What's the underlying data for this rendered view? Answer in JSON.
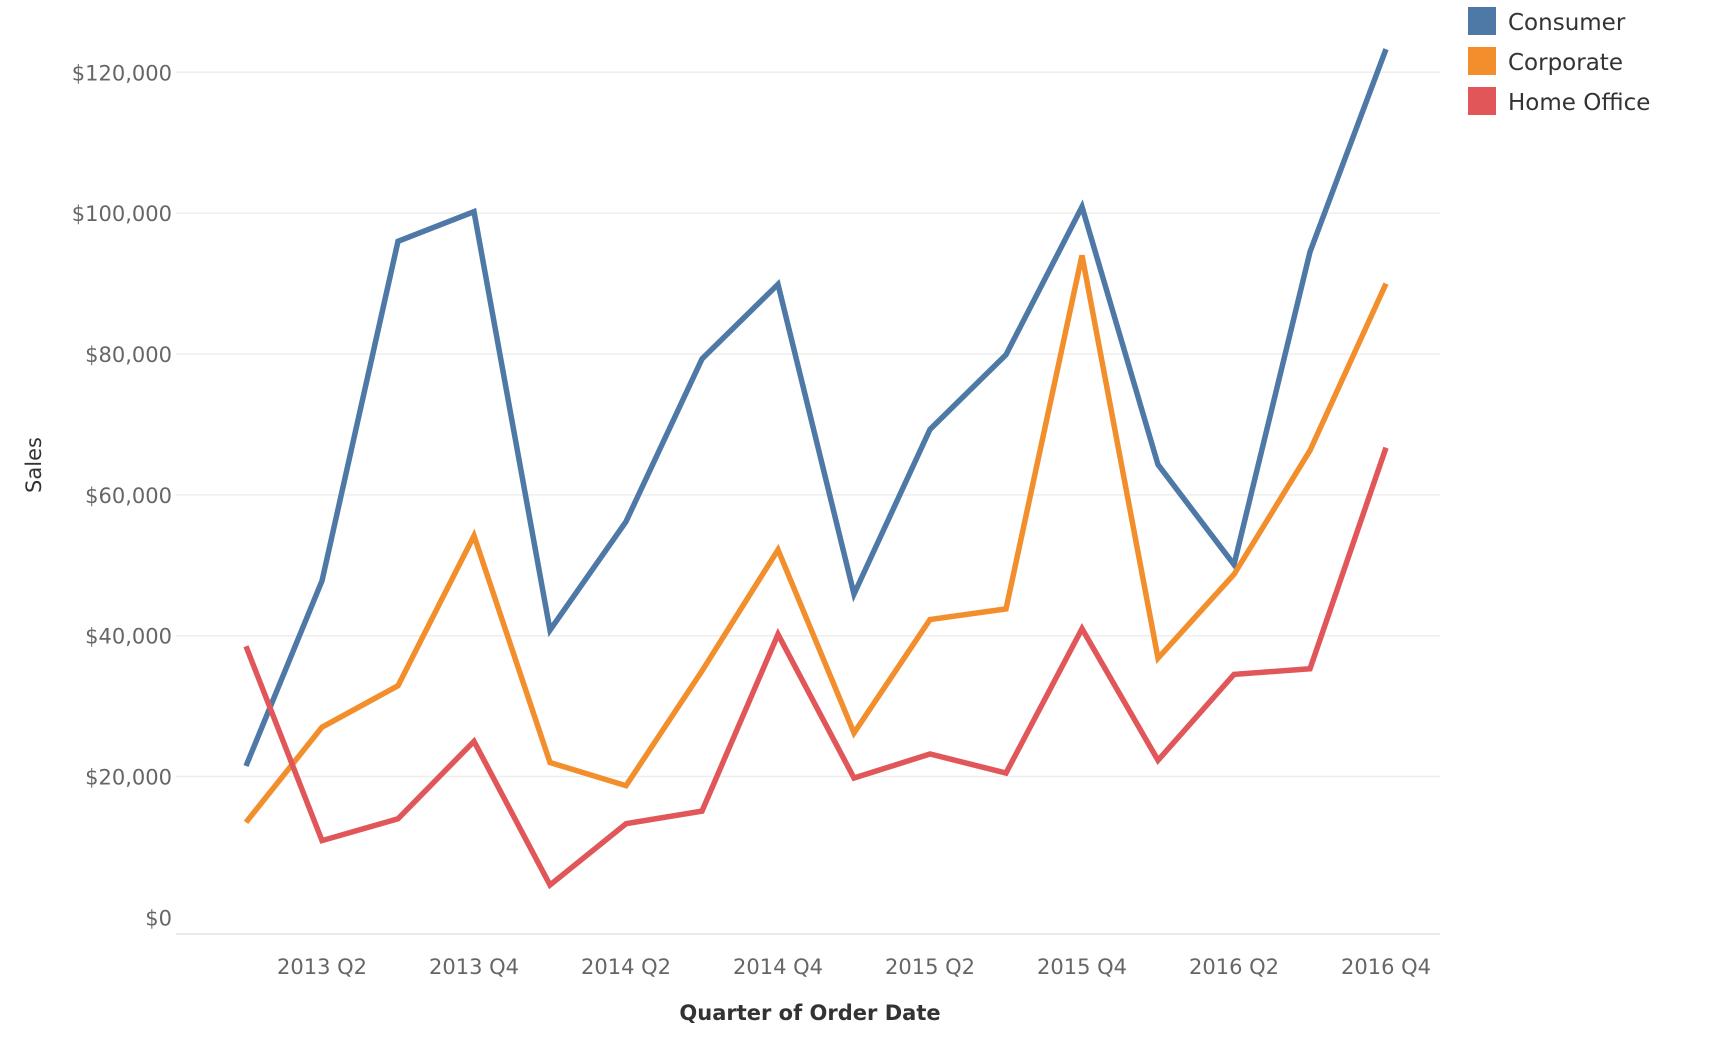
{
  "chart_data": {
    "type": "line",
    "xlabel": "Quarter of Order Date",
    "ylabel": "Sales",
    "x": [
      "2013 Q1",
      "2013 Q2",
      "2013 Q3",
      "2013 Q4",
      "2014 Q1",
      "2014 Q2",
      "2014 Q3",
      "2014 Q4",
      "2015 Q1",
      "2015 Q2",
      "2015 Q3",
      "2015 Q4",
      "2016 Q1",
      "2016 Q2",
      "2016 Q3",
      "2016 Q4"
    ],
    "x_tick_labels": [
      "2013 Q2",
      "2013 Q4",
      "2014 Q2",
      "2014 Q4",
      "2015 Q2",
      "2015 Q4",
      "2016 Q2",
      "2016 Q4"
    ],
    "y_ticks": [
      0,
      20000,
      40000,
      60000,
      80000,
      100000,
      120000
    ],
    "y_tick_labels": [
      "$0",
      "$20,000",
      "$40,000",
      "$60,000",
      "$80,000",
      "$100,000",
      "$120,000"
    ],
    "ylim": [
      -2500,
      127000
    ],
    "grid": "horizontal",
    "legend_position": "top-right",
    "series": [
      {
        "name": "Consumer",
        "color": "#4e79a7",
        "values": [
          21500,
          47800,
          96000,
          100200,
          40800,
          56200,
          79300,
          89900,
          45900,
          69300,
          79900,
          100900,
          64300,
          50100,
          94500,
          123300
        ]
      },
      {
        "name": "Corporate",
        "color": "#f28e2b",
        "values": [
          13500,
          27000,
          32900,
          54200,
          22000,
          18700,
          35000,
          52200,
          26200,
          42300,
          43800,
          94000,
          36800,
          48700,
          66300,
          90000
        ]
      },
      {
        "name": "Home Office",
        "color": "#e15759",
        "values": [
          38500,
          10900,
          14000,
          25000,
          4600,
          13300,
          15100,
          40200,
          19800,
          23200,
          20500,
          41000,
          22300,
          34500,
          35300,
          66700
        ]
      }
    ]
  }
}
